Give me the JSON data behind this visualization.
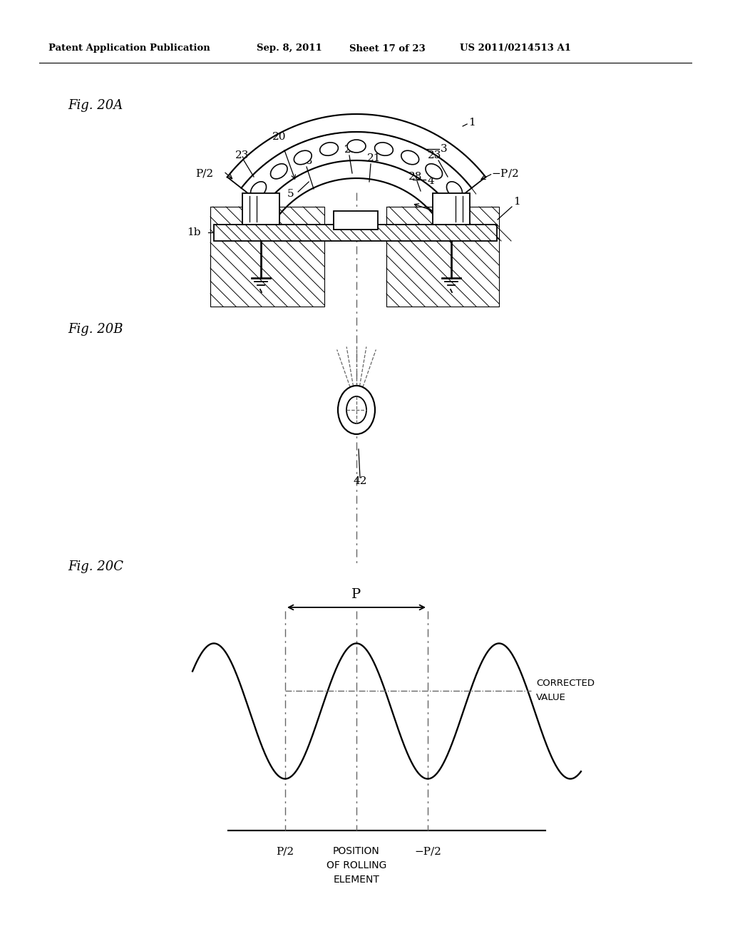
{
  "background_color": "#ffffff",
  "header_text": "Patent Application Publication",
  "header_date": "Sep. 8, 2011",
  "header_sheet": "Sheet 17 of 23",
  "header_patent": "US 2011/0214513 A1",
  "fig20a_label": "Fig. 20A",
  "fig20b_label": "Fig. 20B",
  "fig20c_label": "Fig. 20C",
  "line_color": "#000000",
  "dash_color": "#666666"
}
